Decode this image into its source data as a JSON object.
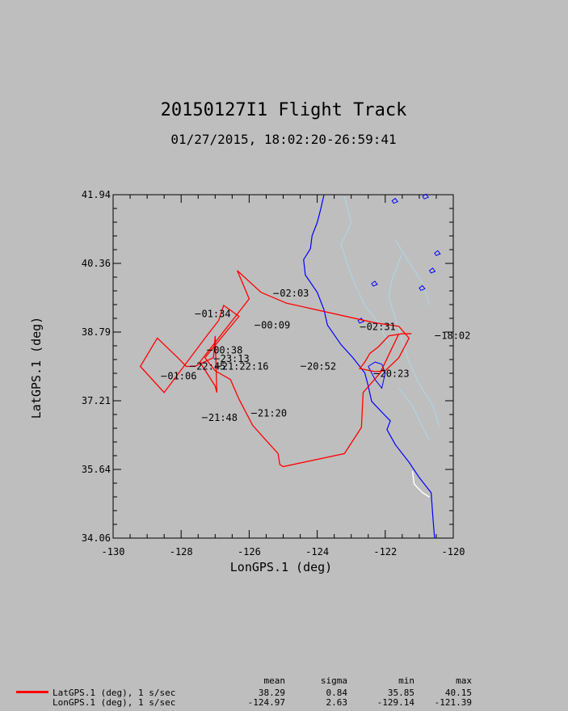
{
  "chart_data": {
    "type": "line",
    "title": "20150127I1 Flight Track",
    "subtitle": "01/27/2015, 18:02:20-26:59:41",
    "xlabel": "LonGPS.1 (deg)",
    "ylabel": "LatGPS.1 (deg)",
    "xlim": [
      -130,
      -120
    ],
    "ylim": [
      34.06,
      41.94
    ],
    "x_ticks": [
      "-130",
      "-128",
      "-126",
      "-124",
      "-122",
      "-120"
    ],
    "y_ticks": [
      "34.06",
      "35.64",
      "37.21",
      "38.79",
      "40.36",
      "41.94"
    ],
    "grid": false,
    "series": [
      {
        "color": "#ff0000",
        "x": [
          -121.23,
          -121.5,
          -121.9,
          -122.2,
          -122.45,
          -122.6,
          -122.75,
          -122.3,
          -122.0,
          -121.6,
          -121.3,
          -121.6,
          -122.3,
          -124.6,
          -124.9,
          -125.65,
          -126.35,
          -126.0,
          -127.45,
          -127.0,
          -126.95,
          -127.0,
          -127.05,
          -127.6,
          -127.85,
          -128.1,
          -128.7,
          -129.2,
          -128.5,
          -127.25,
          -126.9,
          -126.75,
          -126.3,
          -127.3,
          -127.1,
          -127.0,
          -126.55,
          -126.3,
          -125.9,
          -125.5,
          -125.15,
          -125.1,
          -125.0,
          -123.2,
          -122.7,
          -122.65,
          -122.15,
          -121.6
        ],
        "y": [
          38.75,
          38.75,
          38.7,
          38.45,
          38.3,
          38.1,
          37.95,
          37.88,
          37.9,
          38.2,
          38.65,
          38.92,
          39.0,
          39.4,
          39.45,
          39.7,
          40.2,
          39.55,
          38.1,
          37.55,
          37.4,
          38.7,
          38.2,
          38.0,
          38.0,
          38.2,
          38.65,
          38.0,
          37.4,
          38.7,
          39.05,
          39.4,
          39.15,
          38.2,
          38.0,
          37.9,
          37.7,
          37.25,
          36.65,
          36.3,
          36.0,
          35.75,
          35.7,
          36.0,
          36.6,
          37.4,
          37.85,
          38.75
        ]
      }
    ],
    "time_labels": [
      {
        "text": "02:03",
        "lon": -125.1,
        "lat": 39.6
      },
      {
        "text": "01:34",
        "lon": -127.4,
        "lat": 39.13
      },
      {
        "text": "00:09",
        "lon": -125.65,
        "lat": 38.87
      },
      {
        "text": "02:31",
        "lon": -122.55,
        "lat": 38.83
      },
      {
        "text": "00:38",
        "lon": -127.05,
        "lat": 38.3
      },
      {
        "text": "23:13",
        "lon": -126.85,
        "lat": 38.1
      },
      {
        "text": "22:45",
        "lon": -127.55,
        "lat": 37.93
      },
      {
        "text": "21:22:16",
        "lon": -126.8,
        "lat": 37.93
      },
      {
        "text": "20:52",
        "lon": -124.3,
        "lat": 37.93
      },
      {
        "text": "01:06",
        "lon": -128.4,
        "lat": 37.7
      },
      {
        "text": "20:23",
        "lon": -122.15,
        "lat": 37.76
      },
      {
        "text": "21:48",
        "lon": -127.2,
        "lat": 36.75
      },
      {
        "text": "21:20",
        "lon": -125.75,
        "lat": 36.85
      },
      {
        "text": "18:02",
        "lon": -120.35,
        "lat": 38.63
      }
    ],
    "stats": {
      "headers": [
        "mean",
        "sigma",
        "min",
        "max"
      ],
      "rows": [
        {
          "label": "LatGPS.1 (deg), 1 s/sec",
          "values": [
            "38.29",
            "0.84",
            "35.85",
            "40.15"
          ]
        },
        {
          "label": "LonGPS.1 (deg), 1 s/sec",
          "values": [
            "-124.97",
            "2.63",
            "-129.14",
            "-121.39"
          ]
        }
      ]
    },
    "colors": {
      "track": "#ff0000",
      "coast": "#0000ff",
      "rivers": "#add8e6",
      "background": "#bebebe",
      "plot_area": "#bebebe"
    }
  }
}
